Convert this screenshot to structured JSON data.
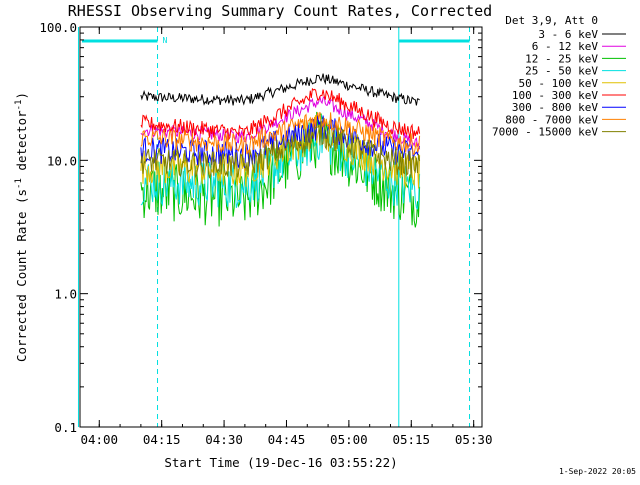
{
  "chart_data": {
    "type": "line",
    "title": "RHESSI Observing Summary Count Rates, Corrected",
    "xlabel": "Start Time (19-Dec-16 03:55:22)",
    "ylabel_parts": {
      "pre": "Corrected Count Rate (s",
      "sup1": "-1",
      "mid": " detector",
      "sup2": "-1",
      "post": ")"
    },
    "y_scale": "log",
    "ylim": [
      0.1,
      100
    ],
    "xlim": [
      "03:55",
      "05:32"
    ],
    "x_ticks": [
      "04:00",
      "04:15",
      "04:30",
      "04:45",
      "05:00",
      "05:15",
      "05:30"
    ],
    "y_ticks": [
      "0.1",
      "1.0",
      "10.0",
      "100.0"
    ],
    "legend_header": "Det 3,9, Att 0",
    "series": [
      {
        "name": "3 - 6 keV",
        "color": "#000000",
        "values": [
          [
            "04:10",
            30
          ],
          [
            "04:35",
            28
          ],
          [
            "04:53",
            42
          ],
          [
            "05:10",
            30
          ],
          [
            "05:17",
            27
          ]
        ]
      },
      {
        "name": "6 - 12 keV",
        "color": "#e000e0",
        "values": [
          [
            "04:10",
            17
          ],
          [
            "04:35",
            15
          ],
          [
            "04:53",
            28
          ],
          [
            "05:10",
            16
          ],
          [
            "05:17",
            13
          ]
        ]
      },
      {
        "name": "12 - 25 keV",
        "color": "#00c000",
        "values": [
          [
            "04:10",
            6
          ],
          [
            "04:35",
            5
          ],
          [
            "04:53",
            15
          ],
          [
            "05:10",
            6
          ],
          [
            "05:17",
            5
          ]
        ]
      },
      {
        "name": "25 - 50 keV",
        "color": "#00e0e0",
        "values": [
          [
            "04:10",
            7
          ],
          [
            "04:35",
            6.5
          ],
          [
            "04:53",
            15
          ],
          [
            "05:10",
            7
          ],
          [
            "05:17",
            6
          ]
        ]
      },
      {
        "name": "50 - 100 keV",
        "color": "#e0c000",
        "values": [
          [
            "04:10",
            9
          ],
          [
            "04:35",
            8.5
          ],
          [
            "04:53",
            17
          ],
          [
            "05:10",
            9
          ],
          [
            "05:17",
            8
          ]
        ]
      },
      {
        "name": "100 - 300 keV",
        "color": "#ff0000",
        "values": [
          [
            "04:10",
            19
          ],
          [
            "04:35",
            16
          ],
          [
            "04:53",
            33
          ],
          [
            "05:10",
            18
          ],
          [
            "05:17",
            16
          ]
        ]
      },
      {
        "name": "300 - 800 keV",
        "color": "#0000ff",
        "values": [
          [
            "04:10",
            12
          ],
          [
            "04:35",
            11
          ],
          [
            "04:53",
            18
          ],
          [
            "05:10",
            12
          ],
          [
            "05:17",
            11
          ]
        ]
      },
      {
        "name": "800 - 7000 keV",
        "color": "#ff8000",
        "values": [
          [
            "04:10",
            15
          ],
          [
            "04:35",
            13
          ],
          [
            "04:53",
            21
          ],
          [
            "05:10",
            14
          ],
          [
            "05:17",
            13
          ]
        ]
      },
      {
        "name": "7000 - 15000 keV",
        "color": "#808000",
        "values": [
          [
            "04:10",
            10
          ],
          [
            "04:35",
            9
          ],
          [
            "04:53",
            16
          ],
          [
            "05:10",
            10
          ],
          [
            "05:17",
            9
          ]
        ]
      }
    ],
    "night_markers": [
      "04:14",
      "05:29"
    ],
    "saa_lines": [
      "03:55",
      "05:12"
    ],
    "flag_label": "N",
    "grid": false,
    "legend_position": "right"
  },
  "footer": {
    "timestamp": "1-Sep-2022 20:05"
  }
}
